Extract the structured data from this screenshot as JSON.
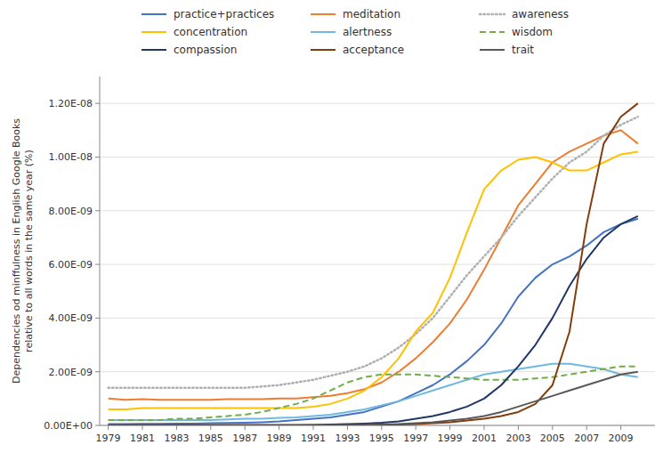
{
  "chart_data": {
    "type": "line",
    "y_label": "Dependencies od minffulness in English Google Books\nrelative to all words in the same year (%)",
    "x": [
      1979,
      1980,
      1981,
      1982,
      1983,
      1984,
      1985,
      1986,
      1987,
      1988,
      1989,
      1990,
      1991,
      1992,
      1993,
      1994,
      1995,
      1996,
      1997,
      1998,
      1999,
      2000,
      2001,
      2002,
      2003,
      2004,
      2005,
      2006,
      2007,
      2008,
      2009,
      2010
    ],
    "series": [
      {
        "name": "practice+practices",
        "color": "#4472c4",
        "line_style": "solid",
        "values": [
          5e-11,
          5e-11,
          6e-11,
          6e-11,
          7e-11,
          7e-11,
          8e-11,
          9e-11,
          1e-10,
          1.2e-10,
          1.5e-10,
          2e-10,
          2.5e-10,
          3e-10,
          4e-10,
          5e-10,
          7e-10,
          9e-10,
          1.2e-09,
          1.5e-09,
          1.9e-09,
          2.4e-09,
          3e-09,
          3.8e-09,
          4.8e-09,
          5.5e-09,
          6e-09,
          6.3e-09,
          6.7e-09,
          7.2e-09,
          7.5e-09,
          7.7e-09
        ]
      },
      {
        "name": "meditation",
        "color": "#ed7d31",
        "line_style": "solid",
        "values": [
          1e-09,
          9.5e-10,
          9.8e-10,
          9.5e-10,
          9.5e-10,
          9.5e-10,
          9.5e-10,
          9.8e-10,
          9.8e-10,
          9.8e-10,
          1e-09,
          1e-09,
          1.05e-09,
          1.1e-09,
          1.2e-09,
          1.35e-09,
          1.6e-09,
          2e-09,
          2.5e-09,
          3.1e-09,
          3.8e-09,
          4.7e-09,
          5.8e-09,
          7e-09,
          8.2e-09,
          9e-09,
          9.8e-09,
          1.02e-08,
          1.05e-08,
          1.08e-08,
          1.1e-08,
          1.05e-08
        ]
      },
      {
        "name": "awareness",
        "color": "#b0b0b0",
        "line_style": "dotted",
        "values": [
          1.4e-09,
          1.4e-09,
          1.4e-09,
          1.4e-09,
          1.4e-09,
          1.4e-09,
          1.4e-09,
          1.4e-09,
          1.4e-09,
          1.45e-09,
          1.5e-09,
          1.6e-09,
          1.7e-09,
          1.85e-09,
          2e-09,
          2.2e-09,
          2.5e-09,
          2.9e-09,
          3.4e-09,
          4e-09,
          4.8e-09,
          5.6e-09,
          6.3e-09,
          7e-09,
          7.8e-09,
          8.5e-09,
          9.2e-09,
          9.8e-09,
          1.02e-08,
          1.08e-08,
          1.12e-08,
          1.15e-08
        ]
      },
      {
        "name": "concentration",
        "color": "#ffc000",
        "line_style": "solid",
        "values": [
          6e-10,
          6e-10,
          6.5e-10,
          6.5e-10,
          6.5e-10,
          6.5e-10,
          6.5e-10,
          6.5e-10,
          6.5e-10,
          6.5e-10,
          6.5e-10,
          6.5e-10,
          7e-10,
          8e-10,
          1e-09,
          1.3e-09,
          1.8e-09,
          2.5e-09,
          3.5e-09,
          4.2e-09,
          5.5e-09,
          7.2e-09,
          8.8e-09,
          9.5e-09,
          9.9e-09,
          1e-08,
          9.8e-09,
          9.5e-09,
          9.5e-09,
          9.8e-09,
          1.01e-08,
          1.02e-08
        ]
      },
      {
        "name": "alertness",
        "color": "#70b8e0",
        "line_style": "solid",
        "values": [
          2e-10,
          2e-10,
          2e-10,
          2e-10,
          2e-10,
          2e-10,
          2e-10,
          2.2e-10,
          2.5e-10,
          2.5e-10,
          2.8e-10,
          3e-10,
          3.5e-10,
          4e-10,
          5e-10,
          6e-10,
          7.5e-10,
          9e-10,
          1.1e-09,
          1.3e-09,
          1.5e-09,
          1.7e-09,
          1.9e-09,
          2e-09,
          2.1e-09,
          2.2e-09,
          2.3e-09,
          2.3e-09,
          2.2e-09,
          2.1e-09,
          1.9e-09,
          1.8e-09
        ]
      },
      {
        "name": "wisdom",
        "color": "#70ad47",
        "line_style": "dashed",
        "values": [
          2e-10,
          2e-10,
          2e-10,
          2e-10,
          2.5e-10,
          2.5e-10,
          3e-10,
          3.5e-10,
          4e-10,
          5e-10,
          6.5e-10,
          8e-10,
          1e-09,
          1.3e-09,
          1.6e-09,
          1.8e-09,
          1.9e-09,
          1.9e-09,
          1.9e-09,
          1.85e-09,
          1.8e-09,
          1.75e-09,
          1.7e-09,
          1.7e-09,
          1.7e-09,
          1.75e-09,
          1.8e-09,
          1.9e-09,
          2e-09,
          2.1e-09,
          2.2e-09,
          2.2e-09
        ]
      },
      {
        "name": "compassion",
        "color": "#1f3864",
        "line_style": "solid",
        "values": [
          1e-11,
          1e-11,
          1e-11,
          1e-11,
          1e-11,
          1e-11,
          1e-11,
          1e-11,
          1e-11,
          1e-11,
          1e-11,
          1e-11,
          2e-11,
          3e-11,
          5e-11,
          7e-11,
          1e-10,
          1.5e-10,
          2.5e-10,
          3.5e-10,
          5e-10,
          7e-10,
          1e-09,
          1.5e-09,
          2.2e-09,
          3e-09,
          4e-09,
          5.2e-09,
          6.2e-09,
          7e-09,
          7.5e-09,
          7.8e-09
        ]
      },
      {
        "name": "acceptance",
        "color": "#843c0c",
        "line_style": "solid",
        "values": [
          1e-11,
          1e-11,
          1e-11,
          1e-11,
          1e-11,
          1e-11,
          1e-11,
          1e-11,
          1e-11,
          1e-11,
          1e-11,
          1e-11,
          1e-11,
          1e-11,
          1e-11,
          1e-11,
          2e-11,
          3e-11,
          5e-11,
          8e-11,
          1.2e-10,
          1.8e-10,
          2.5e-10,
          3.5e-10,
          5e-10,
          8e-10,
          1.5e-09,
          3.5e-09,
          7.5e-09,
          1.05e-08,
          1.15e-08,
          1.2e-08
        ]
      },
      {
        "name": "trait",
        "color": "#595959",
        "line_style": "solid",
        "values": [
          1e-11,
          1e-11,
          1e-11,
          1e-11,
          1e-11,
          1e-11,
          1e-11,
          1e-11,
          1e-11,
          1e-11,
          1e-11,
          1e-11,
          1e-11,
          1e-11,
          1e-11,
          2e-11,
          3e-11,
          5e-11,
          8e-11,
          1.2e-10,
          1.8e-10,
          2.5e-10,
          3.5e-10,
          5e-10,
          7e-10,
          9e-10,
          1.1e-09,
          1.3e-09,
          1.5e-09,
          1.7e-09,
          1.9e-09,
          2e-09
        ]
      }
    ],
    "xlim": [
      1978.5,
      2011.0
    ],
    "xticks": [
      1979,
      1981,
      1983,
      1985,
      1987,
      1989,
      1991,
      1993,
      1995,
      1997,
      1999,
      2001,
      2003,
      2005,
      2007,
      2009
    ],
    "ylim": [
      0,
      1.3e-08
    ],
    "yticks": [
      {
        "value": 0,
        "label": "0.00E+00"
      },
      {
        "value": 2e-09,
        "label": "2.00E-09"
      },
      {
        "value": 4e-09,
        "label": "4.00E-09"
      },
      {
        "value": 6e-09,
        "label": "6.00E-09"
      },
      {
        "value": 8e-09,
        "label": "8.00E-09"
      },
      {
        "value": 1e-08,
        "label": "1.00E-08"
      },
      {
        "value": 1.2e-08,
        "label": "1.20E-08"
      }
    ],
    "grid": true,
    "legend": "top"
  }
}
